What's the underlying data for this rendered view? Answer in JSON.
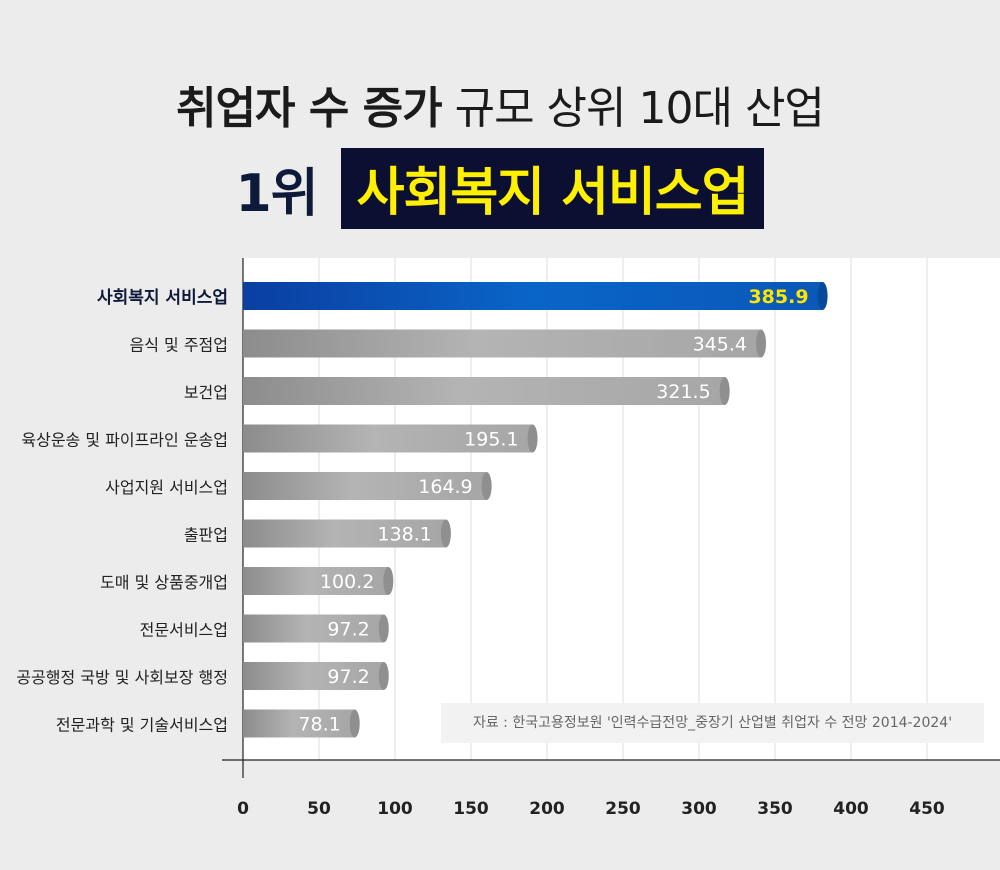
{
  "title": {
    "bold": "취업자 수 증가",
    "light": "규모 상위 10대 산업",
    "rank": "1위",
    "winner": "사회복지 서비스업"
  },
  "source": "자료 :  한국고용정보원 '인력수급전망_중장기 산업별 취업자 수 전망 2014-2024'",
  "colors": {
    "highlight_bar": "#0a5bb5",
    "highlight_label": "#ffe600",
    "normal_bar": "#a8a8a8",
    "title_box": "#0b1032"
  },
  "chart_data": {
    "type": "bar",
    "orientation": "horizontal",
    "categories": [
      "사회복지 서비스업",
      "음식 및 주점업",
      "보건업",
      "육상운송 및 파이프라인 운송업",
      "사업지원 서비스업",
      "출판업",
      "도매 및 상품중개업",
      "전문서비스업",
      "공공행정 국방 및 사회보장 행정",
      "전문과학 및 기술서비스업"
    ],
    "values": [
      385.9,
      345.4,
      321.5,
      195.1,
      164.9,
      138.1,
      100.2,
      97.2,
      97.2,
      78.1
    ],
    "value_labels": [
      "385.9",
      "345.4",
      "321.5",
      "195.1",
      "164.9",
      "138.1",
      "100.2",
      "97.2",
      "97.2",
      "78.1"
    ],
    "highlight_index": 0,
    "xticks": [
      "0",
      "50",
      "100",
      "150",
      "200",
      "250",
      "300",
      "350",
      "400",
      "450"
    ],
    "xlim": [
      0,
      500
    ],
    "grid": true
  }
}
